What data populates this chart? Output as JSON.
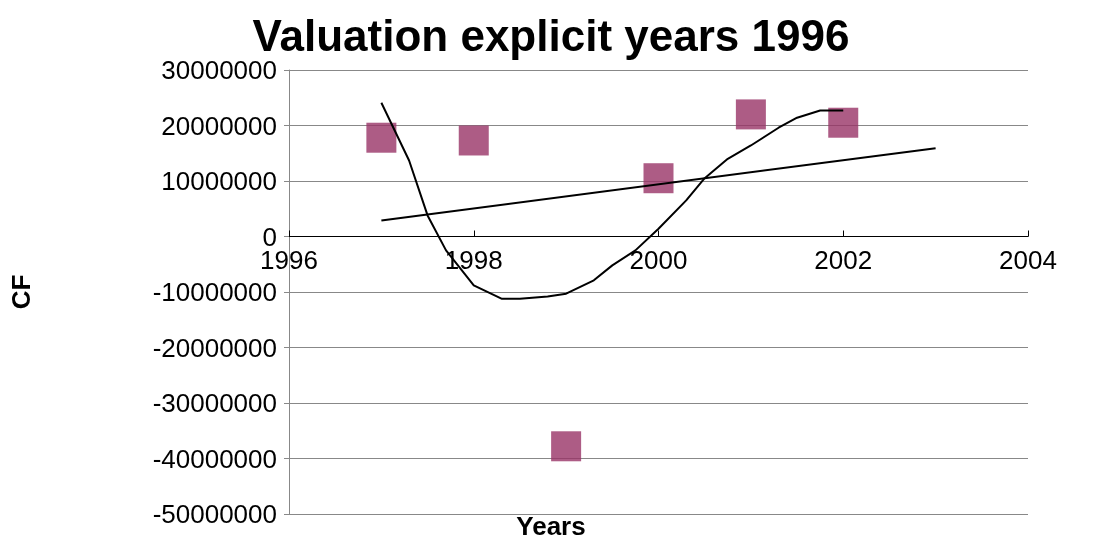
{
  "chart_data": {
    "type": "scatter",
    "title": "Valuation explicit years 1996",
    "xlabel": "Years",
    "ylabel": "CF",
    "xlim": [
      1996,
      2004
    ],
    "xticks": [
      1996,
      1998,
      2000,
      2002,
      2004
    ],
    "ylim": [
      -50000000,
      30000000
    ],
    "yticks": [
      -50000000,
      -40000000,
      -30000000,
      -20000000,
      -10000000,
      0,
      10000000,
      20000000,
      30000000
    ],
    "grid": "y",
    "series": [
      {
        "marker": "square",
        "color": "#993366",
        "x": [
          1997,
          1998,
          1999,
          2000,
          2001,
          2002
        ],
        "values": [
          17800000,
          17300000,
          -37800000,
          10500000,
          22000000,
          20500000
        ]
      },
      {
        "type": "line",
        "marker": "none",
        "color": "#000000",
        "x": [
          1997,
          2003
        ],
        "values": [
          2900000,
          15900000
        ]
      },
      {
        "type": "line",
        "marker": "none",
        "color": "#000000",
        "x": [
          1997,
          1997.3,
          1997.5,
          1997.7,
          1998,
          1998.3,
          1998.5,
          1998.8,
          1999,
          1999.3,
          1999.5,
          1999.75,
          2000,
          2000.3,
          2000.5,
          2000.75,
          2001,
          2001.3,
          2001.5,
          2001.75,
          2002
        ],
        "values": [
          24100000,
          13700000,
          3800000,
          -2500000,
          -8800000,
          -11200000,
          -11200000,
          -10800000,
          -10300000,
          -7900000,
          -5200000,
          -2500000,
          1400000,
          6500000,
          10500000,
          14000000,
          16400000,
          19600000,
          21400000,
          22700000,
          22700000
        ]
      }
    ]
  }
}
